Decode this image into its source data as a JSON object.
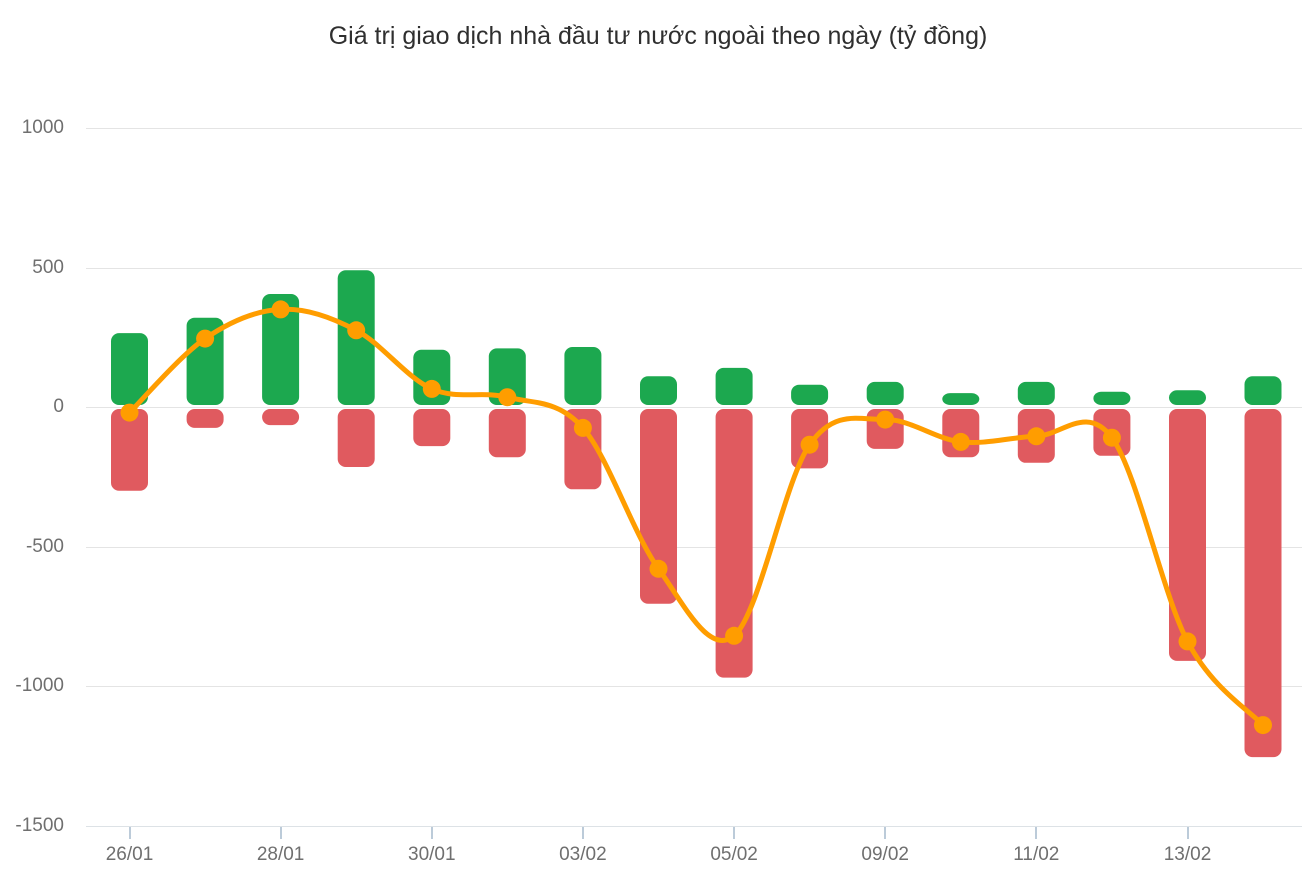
{
  "title": "Giá trị giao dịch nhà đầu tư nước ngoài theo ngày (tỷ đồng)",
  "colors": {
    "positive_bar_green": "#1ca84f",
    "negative_bar_red": "#e05a5f",
    "net_line_orange": "#ff9d00",
    "gridline": "#e4e4e4",
    "axis_line": "#dde2e6",
    "axis_tick": "#bccbd9",
    "axis_text": "#6f6f6f",
    "title_text": "#2f2f2f",
    "background": "#ffffff"
  },
  "chart_data": {
    "type": "bar",
    "subtype": "paired positive/negative bars with smooth line overlay",
    "title": "Giá trị giao dịch nhà đầu tư nước ngoài theo ngày (tỷ đồng)",
    "categories": [
      "26/01",
      "",
      "28/01",
      "",
      "30/01",
      "",
      "03/02",
      "",
      "05/02",
      "",
      "09/02",
      "",
      "11/02",
      "",
      "13/02",
      ""
    ],
    "visible_x_tick_labels": [
      "26/01",
      "28/01",
      "30/01",
      "03/02",
      "05/02",
      "09/02",
      "11/02",
      "13/02"
    ],
    "series": [
      {
        "name": "green-positive-bars",
        "type": "bar",
        "color": "#1ca84f",
        "values": [
          265,
          320,
          405,
          490,
          205,
          210,
          215,
          110,
          140,
          80,
          90,
          50,
          90,
          55,
          60,
          110
        ]
      },
      {
        "name": "red-negative-bars",
        "type": "bar",
        "color": "#e05a5f",
        "values": [
          -300,
          -75,
          -65,
          -215,
          -140,
          -180,
          -295,
          -705,
          -970,
          -220,
          -150,
          -180,
          -200,
          -175,
          -910,
          -1255
        ]
      },
      {
        "name": "orange-net-line",
        "type": "line",
        "color": "#ff9d00",
        "smooth": true,
        "markers": true,
        "values": [
          -20,
          245,
          350,
          275,
          65,
          35,
          -75,
          -580,
          -820,
          -135,
          -45,
          -125,
          -105,
          -110,
          -840,
          -1140
        ]
      }
    ],
    "y_ticks": [
      1000,
      500,
      0,
      -500,
      -1000,
      -1500
    ],
    "ylim": [
      -1500,
      1000
    ],
    "xlabel": "",
    "ylabel": "",
    "grid": true,
    "legend_position": "none"
  }
}
